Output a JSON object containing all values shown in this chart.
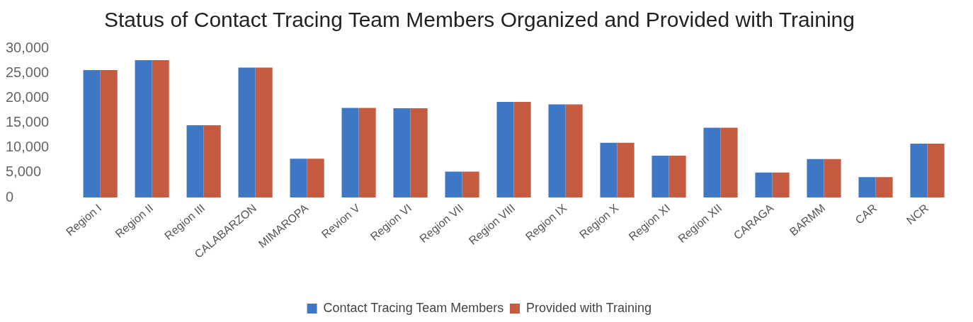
{
  "chart_data": {
    "type": "bar",
    "title": "Status of Contact Tracing Team Members Organized and Provided with Training",
    "categories": [
      "Region I",
      "Region II",
      "Region III",
      "CALABARZON",
      "MIMAROPA",
      "Revion V",
      "Region VI",
      "Region VII",
      "Region VIII",
      "Region IX",
      "Region X",
      "Region XI",
      "Region XII",
      "CARAGA",
      "BARMM",
      "CAR",
      "NCR"
    ],
    "series": [
      {
        "name": "Contact Tracing Team Members",
        "color": "#3e78c4",
        "values": [
          25600,
          27600,
          14500,
          26100,
          7800,
          18000,
          17900,
          5200,
          19200,
          18700,
          11000,
          8400,
          14000,
          5000,
          7700,
          4100,
          10800
        ]
      },
      {
        "name": "Provided with Training",
        "color": "#c55c42",
        "values": [
          25600,
          27600,
          14500,
          26100,
          7800,
          18000,
          17900,
          5200,
          19200,
          18700,
          11000,
          8400,
          14000,
          5000,
          7700,
          4100,
          10800
        ]
      }
    ],
    "ylim": [
      0,
      30000
    ],
    "yticks": [
      0,
      {
        "value": 5000,
        "label": "5,000"
      },
      {
        "value": 10000,
        "label": "10,000"
      },
      {
        "value": 15000,
        "label": "15,000"
      },
      {
        "value": 20000,
        "label": "20,000"
      },
      {
        "value": 25000,
        "label": "25,000"
      },
      {
        "value": 30000,
        "label": "30,000"
      }
    ],
    "grid": false,
    "legend": "bottom"
  }
}
